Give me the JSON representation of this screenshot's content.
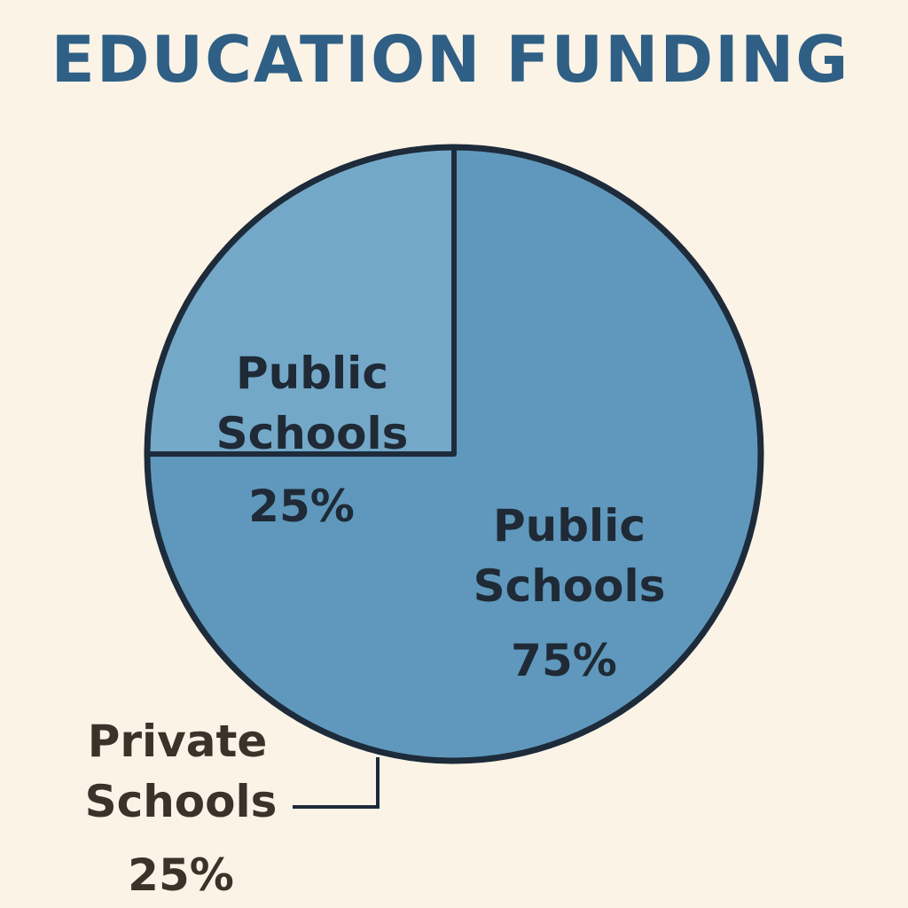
{
  "chart_data": {
    "type": "pie",
    "title": "EDUCATION FUNDING",
    "slices": [
      {
        "label_lines": [
          "Public",
          "Schools"
        ],
        "value_label": "75%",
        "value": 75,
        "color": "#5f98bc"
      },
      {
        "label_lines": [
          "Public",
          "Schools"
        ],
        "value_label": "25%",
        "value": 25,
        "color": "#74a8c8"
      }
    ],
    "callout": {
      "label_lines": [
        "Private",
        "Schools"
      ],
      "value_label": "25%"
    },
    "colors": {
      "background": "#faf3e6",
      "title": "#2f5f85",
      "outline": "#1d2b3a",
      "slice_text": "#1f2a36",
      "callout_text": "#3b322a"
    },
    "legend": "none"
  }
}
